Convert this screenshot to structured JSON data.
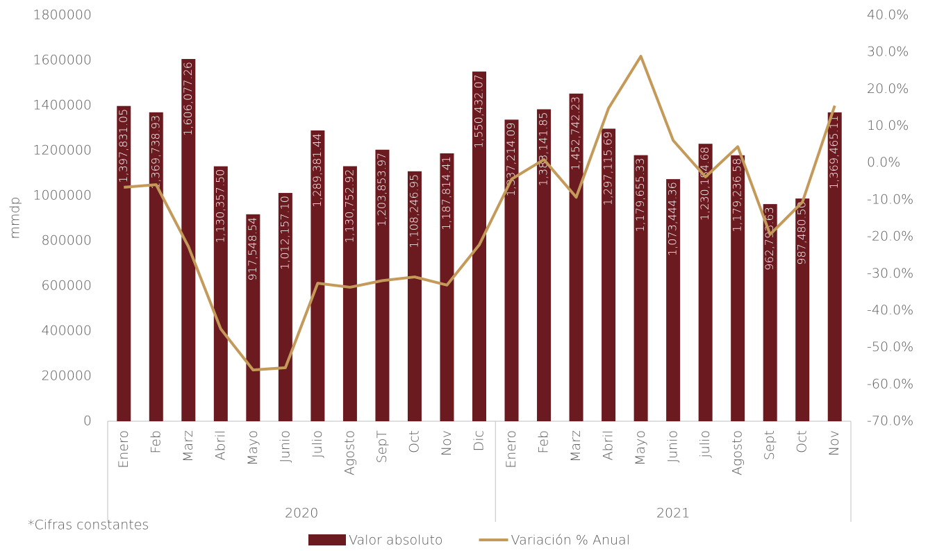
{
  "chart_data": {
    "type": "bar",
    "y_label": "mmdp",
    "footnote": "*Cifras constantes",
    "categories": [
      "Enero",
      "Feb",
      "Marz",
      "Abril",
      "Mayo",
      "Junio",
      "Julio",
      "Agosto",
      "SepT",
      "Oct",
      "Nov",
      "Dic",
      "Enero",
      "Feb",
      "Marz",
      "Abril",
      "Mayo",
      "Junio",
      "julio",
      "Agosto",
      "Sept",
      "Oct",
      "Nov"
    ],
    "groups": [
      {
        "label": "2020",
        "span": 12
      },
      {
        "label": "2021",
        "span": 11
      }
    ],
    "series": [
      {
        "name": "Valor absoluto",
        "type": "bar",
        "color": "#6b1a20",
        "values": [
          1397831.05,
          1369738.93,
          1606077.26,
          1130357.5,
          917548.54,
          1012157.1,
          1289381.44,
          1130752.92,
          1203853.97,
          1108246.95,
          1187814.41,
          1550432.07,
          1337214.09,
          1383141.85,
          1452742.23,
          1297115.69,
          1179655.33,
          1073444.36,
          1230184.68,
          1179236.58,
          962793.63,
          987480.5,
          1369465.11
        ],
        "value_labels": [
          "1,397,831.05",
          "1,369,738.93",
          "1,606,077.26",
          "1,130,357.50",
          "917,548.54",
          "1,012,157.10",
          "1,289,381.44",
          "1,130,752.92",
          "1,203,853.97",
          "1,108,246.95",
          "1,187,814.41",
          "1,550,432.07",
          "1,337,214.09",
          "1,383,141.85",
          "1,452,742.23",
          "1,297,115.69",
          "1,179,655.33",
          "1,073,444.36",
          "1,230,184.68",
          "1,179,236.58",
          "962,793.63",
          "987,480.50",
          "1,369,465.11"
        ]
      },
      {
        "name": "Variación % Anual",
        "type": "line",
        "axis": "y2",
        "color": "#c49a5a",
        "values": [
          -6.6,
          -5.9,
          -22.7,
          -45.0,
          -56.1,
          -55.5,
          -32.6,
          -33.7,
          -31.9,
          -30.9,
          -33.1,
          -22.2,
          -4.4,
          0.9,
          -9.3,
          14.8,
          28.9,
          6.1,
          -3.8,
          4.4,
          -19.4,
          -10.6,
          15.5
        ]
      }
    ],
    "ylim": [
      0,
      1800000
    ],
    "yticks": [
      0,
      200000,
      400000,
      600000,
      800000,
      1000000,
      1200000,
      1400000,
      1600000,
      1800000
    ],
    "y2lim": [
      -70,
      40
    ],
    "y2ticks": [
      {
        "value": -70,
        "label": "-70.0%"
      },
      {
        "value": -60,
        "label": "-60.0%"
      },
      {
        "value": -50,
        "label": "-50.0%"
      },
      {
        "value": -40,
        "label": "-40.0%"
      },
      {
        "value": -30,
        "label": "-30.0%"
      },
      {
        "value": -20,
        "label": "-20.0%"
      },
      {
        "value": -10,
        "label": "-10.0%"
      },
      {
        "value": 0,
        "label": "0.0%"
      },
      {
        "value": 10,
        "label": "10.0%"
      },
      {
        "value": 20,
        "label": "20.0%"
      },
      {
        "value": 30,
        "label": "30.0%"
      },
      {
        "value": 40,
        "label": "40.0%"
      }
    ],
    "grid": false,
    "legend": "bottom"
  }
}
